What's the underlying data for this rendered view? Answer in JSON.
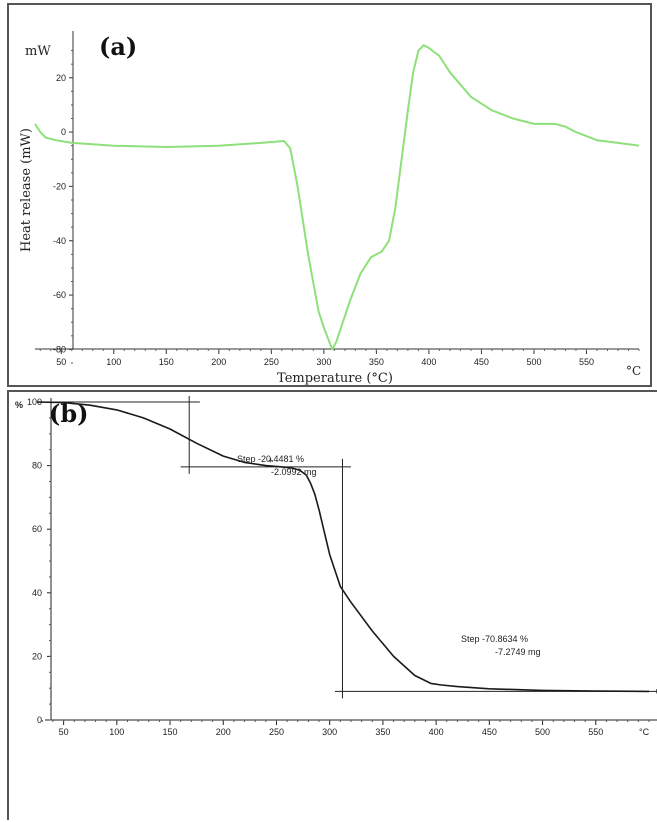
{
  "chart_data": [
    {
      "type": "line",
      "panel_label": "(a)",
      "y_unit": "mW",
      "x_unit": "°C",
      "ylabel": "Heat release (mW)",
      "xlabel": "Temperature (°C)",
      "xlim": [
        25,
        600
      ],
      "ylim": [
        -85,
        35
      ],
      "x_ticks": [
        50,
        100,
        150,
        200,
        250,
        300,
        350,
        400,
        450,
        500,
        550
      ],
      "y_ticks": [
        20,
        0,
        -20,
        -40,
        -60,
        -80
      ],
      "color": "#8ee07a",
      "series": [
        {
          "x": [
            25,
            30,
            35,
            45,
            60,
            80,
            100,
            150,
            200,
            240,
            255,
            262,
            268,
            275,
            285,
            295,
            300,
            305,
            308,
            312,
            318,
            325,
            335,
            345,
            355,
            362,
            368,
            374,
            380,
            385,
            390,
            395,
            400,
            410,
            420,
            440,
            460,
            480,
            500,
            520,
            530,
            540,
            560,
            580,
            600
          ],
          "y": [
            3,
            0,
            -2,
            -3,
            -4,
            -4.5,
            -5,
            -5.5,
            -5,
            -4,
            -3.5,
            -3.3,
            -6,
            -20,
            -45,
            -66,
            -72,
            -77,
            -80,
            -77,
            -70,
            -62,
            -52,
            -46,
            -44,
            -40,
            -28,
            -10,
            8,
            22,
            30,
            32,
            31,
            28,
            22,
            13,
            8,
            5,
            3,
            3,
            2,
            0,
            -3,
            -4,
            -5
          ]
        }
      ]
    },
    {
      "type": "line",
      "panel_label": "(b)",
      "y_unit": "%",
      "x_unit": "°C",
      "xlim": [
        25,
        600
      ],
      "ylim": [
        0,
        100
      ],
      "x_ticks": [
        50,
        100,
        150,
        200,
        250,
        300,
        350,
        400,
        450,
        500,
        550
      ],
      "y_ticks": [
        100,
        80,
        60,
        40,
        20,
        0
      ],
      "color": "#1a1a1a",
      "annotations": [
        {
          "line1": "Step  -20.4481 %",
          "line2": "-2.0992 mg"
        },
        {
          "line1": "Step  -70.8634 %",
          "line2": "-7.2749 mg"
        }
      ],
      "series": [
        {
          "x": [
            25,
            50,
            75,
            100,
            125,
            150,
            175,
            200,
            220,
            240,
            255,
            265,
            272,
            278,
            282,
            286,
            290,
            295,
            300,
            310,
            320,
            340,
            360,
            380,
            395,
            405,
            420,
            450,
            500,
            550,
            600
          ],
          "y": [
            100,
            99.8,
            99,
            97.5,
            95,
            91.5,
            87,
            83,
            81,
            80,
            79.6,
            79.2,
            78.5,
            77,
            74.5,
            71,
            66,
            59,
            52,
            42,
            37,
            28,
            20,
            14,
            11.5,
            11,
            10.5,
            9.8,
            9.3,
            9.1,
            9
          ]
        }
      ]
    }
  ]
}
